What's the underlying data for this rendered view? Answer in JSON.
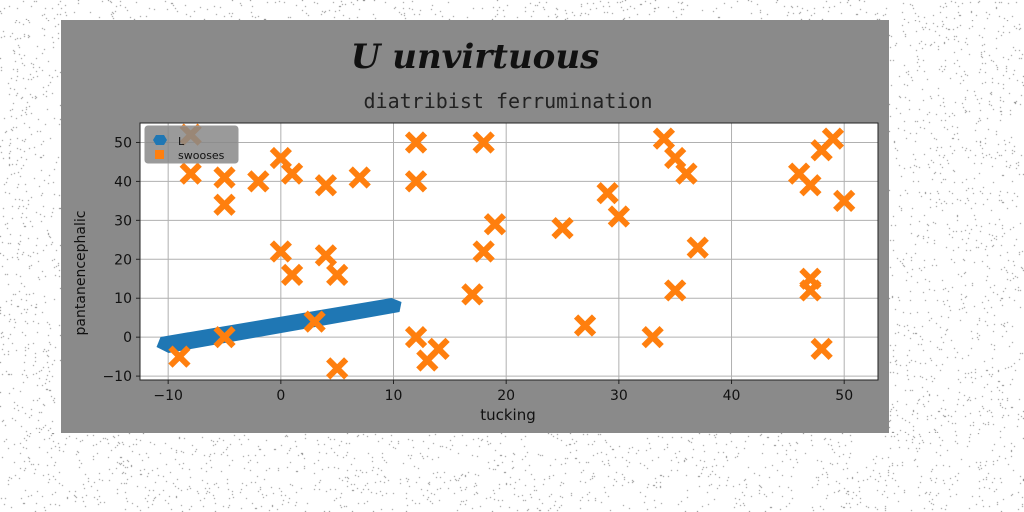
{
  "figure": {
    "suptitle": "U unvirtuous"
  },
  "chart_data": {
    "type": "scatter",
    "title": "diatribist ferrumination",
    "xlabel": "tucking",
    "ylabel": "pantanencephalic",
    "xlim": [
      -12.5,
      53
    ],
    "ylim": [
      -11,
      55
    ],
    "xticks": [
      -10,
      0,
      10,
      20,
      30,
      40,
      50
    ],
    "yticks": [
      -10,
      0,
      10,
      20,
      30,
      40,
      50
    ],
    "grid": true,
    "legend_position": "top-left",
    "series": [
      {
        "name": "L",
        "marker": "line-band",
        "color": "#1f77b4",
        "points": [
          [
            -10.5,
            -2
          ],
          [
            10,
            8
          ]
        ]
      },
      {
        "name": "swooses",
        "marker": "X",
        "color": "#ff7f0e",
        "points": [
          [
            -8,
            42
          ],
          [
            -8,
            52
          ],
          [
            -5,
            41
          ],
          [
            -5,
            34
          ],
          [
            -5,
            0
          ],
          [
            -9,
            -5
          ],
          [
            -2,
            40
          ],
          [
            0,
            46
          ],
          [
            1,
            42
          ],
          [
            0,
            22
          ],
          [
            1,
            16
          ],
          [
            4,
            39
          ],
          [
            4,
            21
          ],
          [
            5,
            16
          ],
          [
            3,
            4
          ],
          [
            5,
            -8
          ],
          [
            7,
            41
          ],
          [
            12,
            50
          ],
          [
            12,
            40
          ],
          [
            12,
            0
          ],
          [
            13,
            -6
          ],
          [
            14,
            -3
          ],
          [
            17,
            11
          ],
          [
            18,
            50
          ],
          [
            18,
            22
          ],
          [
            19,
            29
          ],
          [
            25,
            28
          ],
          [
            27,
            3
          ],
          [
            29,
            37
          ],
          [
            30,
            31
          ],
          [
            33,
            0
          ],
          [
            34,
            51
          ],
          [
            35,
            46
          ],
          [
            36,
            42
          ],
          [
            35,
            12
          ],
          [
            37,
            23
          ],
          [
            46,
            42
          ],
          [
            47,
            39
          ],
          [
            48,
            48
          ],
          [
            49,
            51
          ],
          [
            50,
            35
          ],
          [
            47,
            15
          ],
          [
            47,
            12
          ],
          [
            48,
            -3
          ]
        ]
      }
    ]
  }
}
